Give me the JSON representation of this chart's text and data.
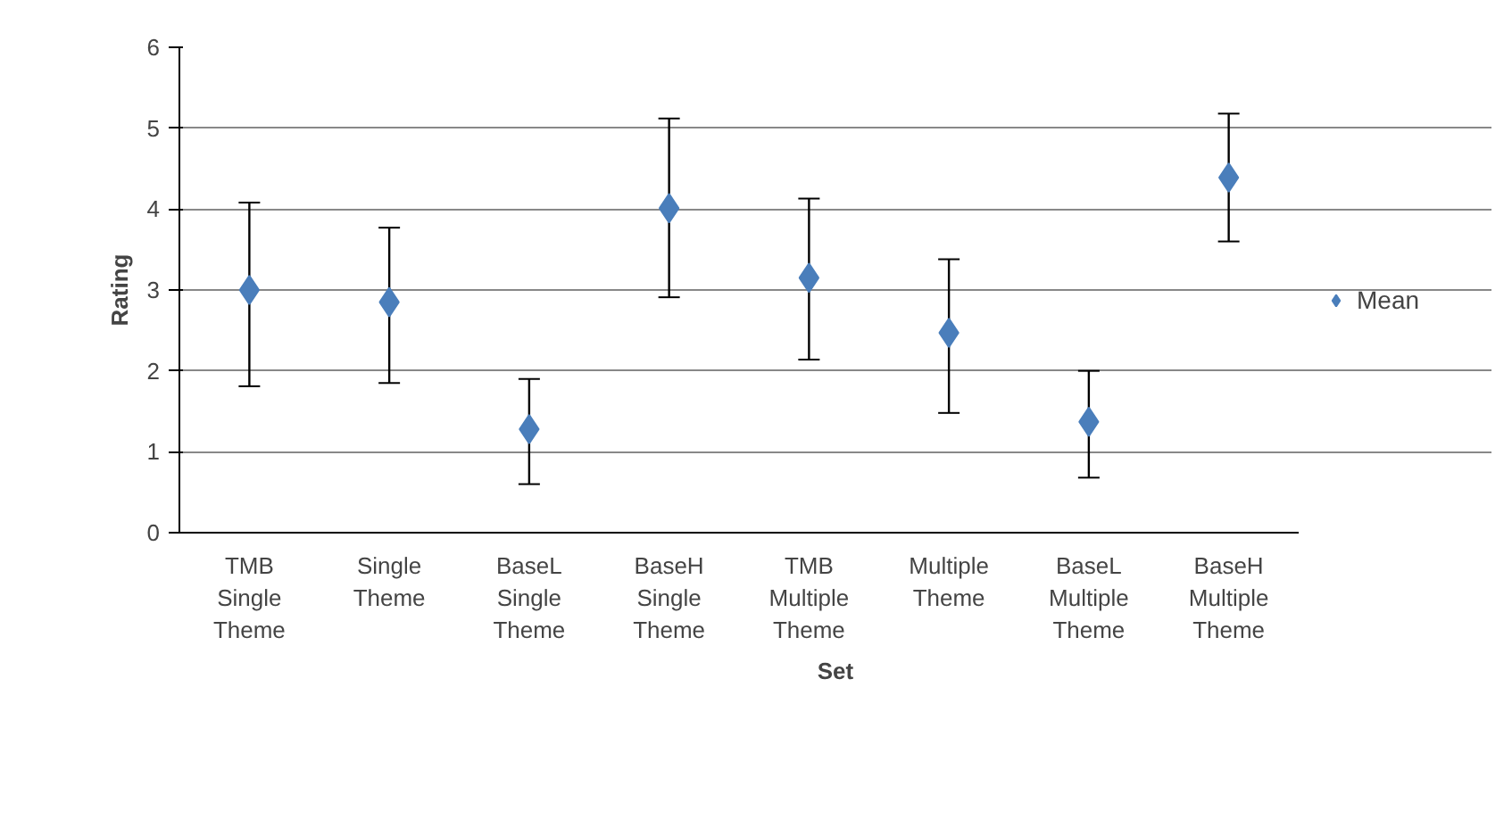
{
  "chart_data": {
    "type": "scatter",
    "xlabel": "Set",
    "ylabel": "Rating",
    "categories": [
      "TMB Single Theme",
      "Single Theme",
      "BaseL Single Theme",
      "BaseH Single Theme",
      "TMB Multiple Theme",
      "Multiple Theme",
      "BaseL Multiple Theme",
      "BaseH Multiple Theme"
    ],
    "series": [
      {
        "name": "Mean",
        "color": "#4a7ebb",
        "values": [
          3.0,
          2.85,
          1.28,
          4.01,
          3.15,
          2.47,
          1.37,
          4.39
        ],
        "errors": [
          [
            1.81,
            4.08
          ],
          [
            1.85,
            3.77
          ],
          [
            0.6,
            1.9
          ],
          [
            2.91,
            5.12
          ],
          [
            2.14,
            4.13
          ],
          [
            1.48,
            3.38
          ],
          [
            0.68,
            2.0
          ],
          [
            3.6,
            5.18
          ]
        ]
      }
    ],
    "ylim": [
      0,
      6
    ],
    "yticks": [
      0,
      1,
      2,
      3,
      4,
      5,
      6
    ],
    "grid": "y",
    "legend": "right",
    "marker": "diamond"
  }
}
